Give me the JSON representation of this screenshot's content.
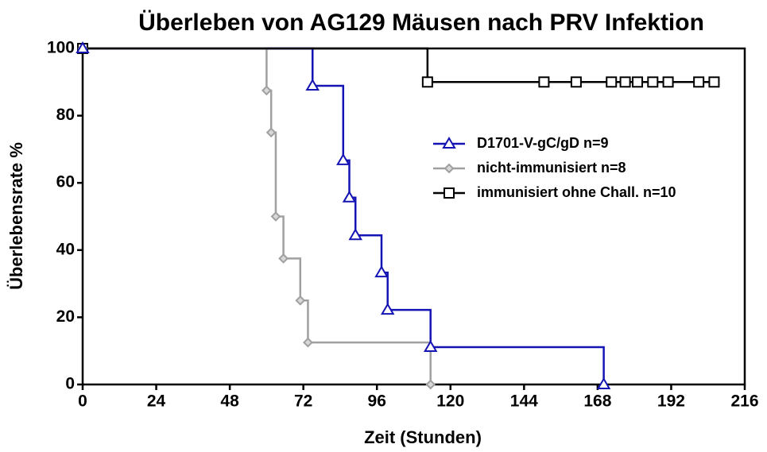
{
  "chart_data": {
    "type": "step",
    "title": "Überleben von AG129 Mäusen nach PRV Infektion",
    "x_label": "Zeit (Stunden)",
    "y_label": "Überlebensrate %",
    "xlim": [
      0,
      216
    ],
    "xticks": [
      0,
      24,
      48,
      72,
      96,
      120,
      144,
      168,
      192,
      216
    ],
    "ylim": [
      0,
      100
    ],
    "yticks": [
      0,
      20,
      40,
      60,
      80,
      100
    ],
    "series": [
      {
        "name": "D1701-V-gC/gD n=9",
        "color": "#1414b4",
        "marker": "triangle",
        "x": [
          0,
          75,
          85,
          87,
          89,
          97.5,
          99.5,
          113.5,
          170
        ],
        "values": [
          100,
          88.9,
          66.7,
          55.6,
          44.4,
          33.3,
          22.2,
          11.1,
          0
        ]
      },
      {
        "name": "nicht-immunisiert n=8",
        "color": "#a0a0a0",
        "marker": "diamond",
        "x": [
          0,
          60,
          61.5,
          63,
          65.5,
          71,
          73.5,
          113.5
        ],
        "values": [
          100,
          87.5,
          75,
          50,
          37.5,
          25,
          12.5,
          0
        ]
      },
      {
        "name": "immunisiert ohne Chall. n=10",
        "color": "#000000",
        "marker": "square",
        "x": [
          0,
          112.5,
          150.5,
          161,
          172.5,
          177,
          181,
          186,
          191,
          201,
          206
        ],
        "values": [
          100,
          90,
          90,
          90,
          90,
          90,
          90,
          90,
          90,
          90,
          90
        ]
      }
    ]
  }
}
